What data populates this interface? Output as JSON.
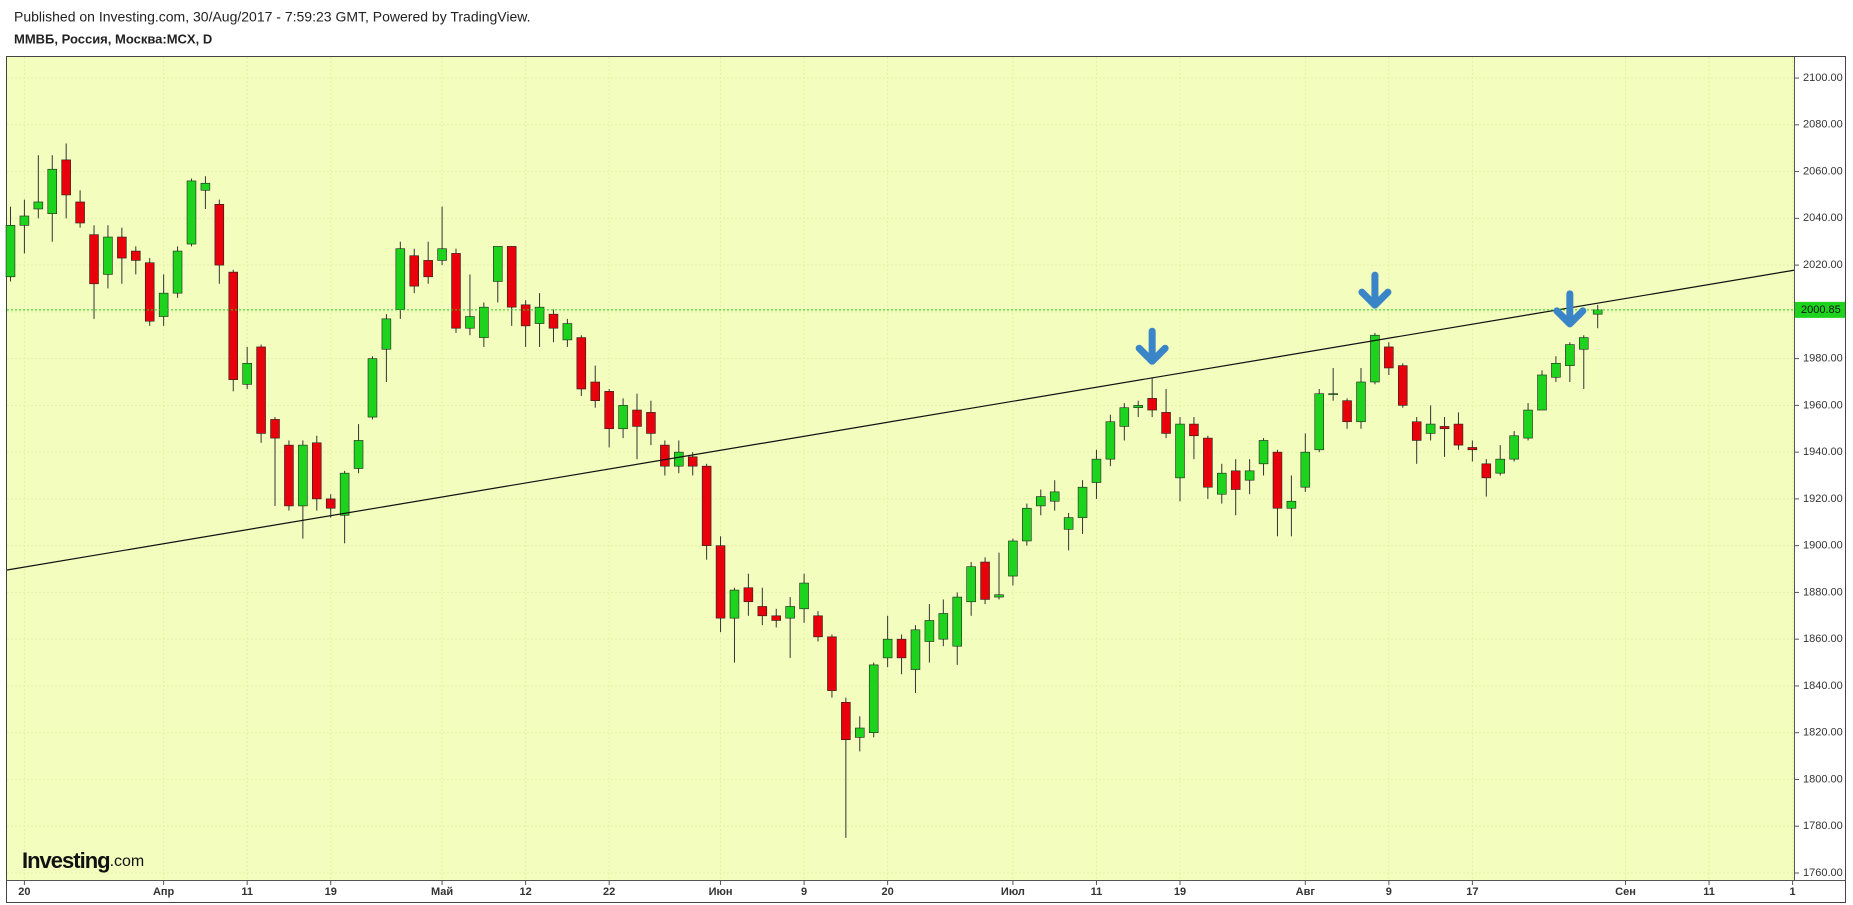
{
  "chart_data": {
    "type": "candlestick",
    "published": "Published on Investing.com, 30/Aug/2017 - 7:59:23 GMT, Powered by TradingView.",
    "title": "ММВБ, Россия, Москва:MCX, D",
    "watermark": "Investing",
    "watermark_suffix": ".com",
    "up_color": "#1ed31e",
    "down_color": "#e8000b",
    "grid": true,
    "open": [
      2015,
      2037,
      2044,
      2042,
      2065,
      2047,
      2033,
      2016,
      2032,
      2026,
      2021,
      1998,
      2008,
      2029,
      2052,
      2046,
      2017,
      1969,
      1985,
      1954,
      1943,
      1917,
      1944,
      1920,
      1913,
      1933,
      1955,
      1984,
      2001,
      2024,
      2022,
      2022,
      2025,
      1993,
      1989,
      2013,
      2028,
      2003,
      1995,
      1999,
      1988,
      1989,
      1970,
      1966,
      1950,
      1958,
      1957,
      1943,
      1934,
      1938,
      1934,
      1900,
      1869,
      1882,
      1874,
      1870,
      1869,
      1873,
      1870,
      1861,
      1833,
      1818,
      1820,
      1852,
      1860,
      1847,
      1859,
      1860,
      1857,
      1876,
      1893,
      1878,
      1887,
      1902,
      1917,
      1919,
      1907,
      1912,
      1927,
      1937,
      1951,
      1959,
      1963,
      1957,
      1929,
      1952,
      1946,
      1922,
      1932,
      1928,
      1935,
      1940,
      1916,
      1925,
      1941,
      1965,
      1962,
      1953,
      1970,
      1985,
      1977,
      1953,
      1948,
      1951,
      1952,
      1942,
      1935,
      1931,
      1937,
      1946,
      1958,
      1972,
      1977,
      1984,
      1999
    ],
    "high": [
      2045,
      2048,
      2067,
      2067,
      2072,
      2052,
      2037,
      2037,
      2036,
      2028,
      2023,
      2016,
      2028,
      2057,
      2058,
      2048,
      2018,
      1985,
      1986,
      1955,
      1945,
      1945,
      1947,
      1922,
      1932,
      1952,
      1981,
      1999,
      2030,
      2027,
      2030,
      2045,
      2027,
      2016,
      2004,
      2028,
      2028,
      2005,
      2008,
      2001,
      1997,
      1990,
      1977,
      1967,
      1963,
      1965,
      1962,
      1945,
      1945,
      1940,
      1935,
      1904,
      1882,
      1888,
      1882,
      1873,
      1878,
      1888,
      1872,
      1862,
      1835,
      1827,
      1850,
      1870,
      1862,
      1866,
      1875,
      1877,
      1880,
      1893,
      1895,
      1897,
      1903,
      1918,
      1924,
      1928,
      1914,
      1928,
      1941,
      1956,
      1961,
      1962,
      1972,
      1967,
      1955,
      1955,
      1947,
      1935,
      1937,
      1937,
      1946,
      1941,
      1930,
      1948,
      1967,
      1976,
      1963,
      1976,
      1991,
      1987,
      1978,
      1955,
      1960,
      1955,
      1957,
      1945,
      1937,
      1943,
      1949,
      1961,
      1975,
      1981,
      1987,
      1990,
      2003
    ],
    "low": [
      2013,
      2025,
      2040,
      2030,
      2040,
      2036,
      1997,
      2010,
      2012,
      2016,
      1994,
      1994,
      2006,
      2028,
      2044,
      2012,
      1966,
      1967,
      1944,
      1917,
      1915,
      1903,
      1915,
      1912,
      1901,
      1931,
      1954,
      1970,
      1997,
      2008,
      2012,
      2020,
      1991,
      1990,
      1985,
      2004,
      1994,
      1985,
      1985,
      1987,
      1985,
      1964,
      1959,
      1942,
      1946,
      1937,
      1943,
      1930,
      1931,
      1930,
      1894,
      1863,
      1850,
      1870,
      1866,
      1865,
      1852,
      1867,
      1859,
      1835,
      1775,
      1812,
      1818,
      1848,
      1845,
      1837,
      1850,
      1857,
      1849,
      1870,
      1875,
      1877,
      1883,
      1900,
      1913,
      1915,
      1898,
      1905,
      1920,
      1934,
      1945,
      1955,
      1955,
      1946,
      1919,
      1937,
      1920,
      1918,
      1913,
      1922,
      1930,
      1904,
      1904,
      1923,
      1940,
      1962,
      1950,
      1950,
      1969,
      1973,
      1959,
      1935,
      1945,
      1938,
      1941,
      1936,
      1921,
      1930,
      1936,
      1945,
      1958,
      1970,
      1970,
      1967,
      1993
    ],
    "close": [
      2037,
      2041,
      2047,
      2061,
      2050,
      2038,
      2012,
      2032,
      2023,
      2022,
      1996,
      2008,
      2026,
      2056,
      2055,
      2020,
      1971,
      1978,
      1948,
      1946,
      1917,
      1943,
      1920,
      1916,
      1931,
      1945,
      1980,
      1997,
      2027,
      2011,
      2015,
      2027,
      1993,
      1998,
      2002,
      2028,
      2002,
      1994,
      2002,
      1993,
      1995,
      1967,
      1962,
      1950,
      1960,
      1951,
      1948,
      1934,
      1940,
      1934,
      1900,
      1869,
      1881,
      1876,
      1870,
      1868,
      1874,
      1884,
      1861,
      1838,
      1817,
      1822,
      1849,
      1860,
      1852,
      1864,
      1868,
      1871,
      1878,
      1891,
      1877,
      1879,
      1902,
      1916,
      1921,
      1923,
      1912,
      1925,
      1937,
      1953,
      1959,
      1960,
      1958,
      1948,
      1952,
      1947,
      1925,
      1931,
      1924,
      1932,
      1945,
      1916,
      1919,
      1940,
      1965,
      1965,
      1953,
      1970,
      1990,
      1976,
      1960,
      1945,
      1952,
      1950,
      1943,
      1941,
      1929,
      1937,
      1947,
      1958,
      1973,
      1978,
      1986,
      1989,
      2000.85
    ],
    "xlim": [
      -0.25,
      128.1
    ],
    "xticks": [
      {
        "value": 1,
        "label": "20"
      },
      {
        "value": 11,
        "label": "Апр"
      },
      {
        "value": 17,
        "label": "11"
      },
      {
        "value": 23,
        "label": "19"
      },
      {
        "value": 31,
        "label": "Май"
      },
      {
        "value": 37,
        "label": "12"
      },
      {
        "value": 43,
        "label": "22"
      },
      {
        "value": 51,
        "label": "Июн"
      },
      {
        "value": 57,
        "label": "9"
      },
      {
        "value": 63,
        "label": "20"
      },
      {
        "value": 72,
        "label": "Июл"
      },
      {
        "value": 78,
        "label": "11"
      },
      {
        "value": 84,
        "label": "19"
      },
      {
        "value": 93,
        "label": "Авг"
      },
      {
        "value": 99,
        "label": "9"
      },
      {
        "value": 105,
        "label": "17"
      },
      {
        "value": 116,
        "label": "Сен"
      },
      {
        "value": 122,
        "label": "11"
      },
      {
        "value": 128,
        "label": "1"
      }
    ],
    "ylim": [
      1757,
      2109
    ],
    "yticks": [
      {
        "value": 1760,
        "label": "1760.00"
      },
      {
        "value": 1780,
        "label": "1780.00"
      },
      {
        "value": 1800,
        "label": "1800.00"
      },
      {
        "value": 1820,
        "label": "1820.00"
      },
      {
        "value": 1840,
        "label": "1840.00"
      },
      {
        "value": 1860,
        "label": "1860.00"
      },
      {
        "value": 1880,
        "label": "1880.00"
      },
      {
        "value": 1900,
        "label": "1900.00"
      },
      {
        "value": 1920,
        "label": "1920.00"
      },
      {
        "value": 1940,
        "label": "1940.00"
      },
      {
        "value": 1960,
        "label": "1960.00"
      },
      {
        "value": 1980,
        "label": "1980.00"
      },
      {
        "value": 2000,
        "label": "2000.00"
      },
      {
        "value": 2020,
        "label": "2020.00"
      },
      {
        "value": 2040,
        "label": "2040.00"
      },
      {
        "value": 2060,
        "label": "2060.00"
      },
      {
        "value": 2080,
        "label": "2080.00"
      },
      {
        "value": 2100,
        "label": "2100.00"
      }
    ],
    "trendline": {
      "x": [
        -0.25,
        128.1
      ],
      "y": [
        1889.6,
        2017.8
      ]
    },
    "arrows": [
      {
        "x": 82,
        "y": 1978
      },
      {
        "x": 98,
        "y": 2002
      },
      {
        "x": 112,
        "y": 1994
      }
    ]
  }
}
